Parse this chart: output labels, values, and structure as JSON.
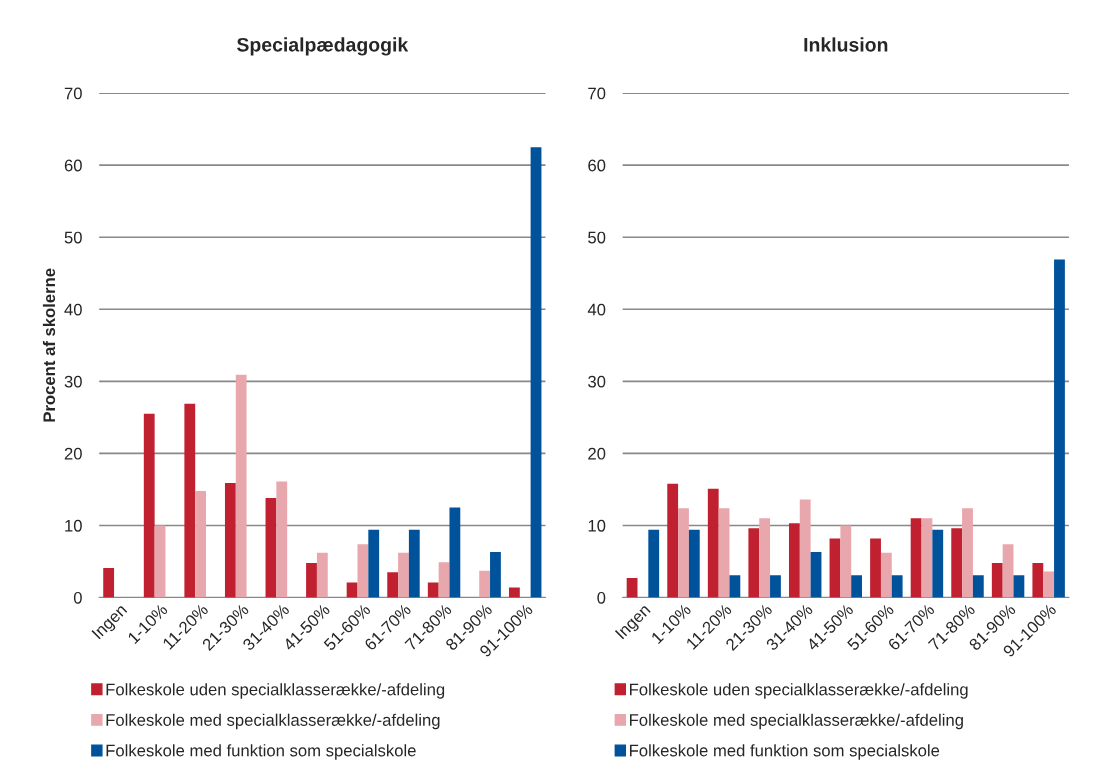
{
  "chart_data": [
    {
      "type": "bar",
      "title": "Specialpædagogik",
      "ylabel": "Procent af skolerne",
      "categories": [
        "Ingen",
        "1-10%",
        "11-20%",
        "21-30%",
        "31-40%",
        "41-50%",
        "51-60%",
        "61-70%",
        "71-80%",
        "81-90%",
        "91-100%"
      ],
      "series": [
        {
          "name": "Folkeskole uden specialklasserække/-afdeling",
          "color": "#c0202f",
          "values": [
            4.1,
            25.5,
            26.9,
            15.9,
            13.8,
            4.8,
            2.1,
            3.5,
            2.1,
            null,
            1.4
          ]
        },
        {
          "name": "Folkeskole med specialklasserække/-afdeling",
          "color": "#e8a7ad",
          "values": [
            null,
            10,
            14.8,
            30.9,
            16.1,
            6.2,
            7.4,
            6.2,
            4.9,
            3.7,
            null
          ]
        },
        {
          "name": "Folkeskole med funktion som specialskole",
          "color": "#00529b",
          "values": [
            null,
            null,
            null,
            null,
            null,
            null,
            9.4,
            9.4,
            12.5,
            6.3,
            62.5
          ]
        }
      ],
      "ylim": [
        0,
        70
      ],
      "yticks": [
        0,
        10,
        20,
        30,
        40,
        50,
        60,
        70
      ],
      "grid": "y",
      "legend": "bottom"
    },
    {
      "type": "bar",
      "title": "Inklusion",
      "categories": [
        "Ingen",
        "1-10%",
        "11-20%",
        "21-30%",
        "31-40%",
        "41-50%",
        "51-60%",
        "61-70%",
        "71-80%",
        "81-90%",
        "91-100%"
      ],
      "series": [
        {
          "name": "Folkeskole uden specialklasserække/-afdeling",
          "color": "#c0202f",
          "values": [
            2.7,
            15.8,
            15.1,
            9.6,
            10.3,
            8.2,
            8.2,
            11.0,
            9.6,
            4.8,
            4.8
          ]
        },
        {
          "name": "Folkeskole med specialklasserække/-afdeling",
          "color": "#e8a7ad",
          "values": [
            null,
            12.4,
            12.4,
            11.0,
            13.6,
            10.0,
            6.2,
            11.0,
            12.4,
            7.4,
            3.6
          ]
        },
        {
          "name": "Folkeskole med funktion som specialskole",
          "color": "#00529b",
          "values": [
            9.4,
            9.4,
            3.1,
            3.1,
            6.3,
            3.1,
            3.1,
            9.4,
            3.1,
            3.1,
            46.9
          ]
        }
      ],
      "ylim": [
        0,
        70
      ],
      "yticks": [
        0,
        10,
        20,
        30,
        40,
        50,
        60,
        70
      ],
      "grid": "y",
      "legend": "bottom"
    }
  ]
}
